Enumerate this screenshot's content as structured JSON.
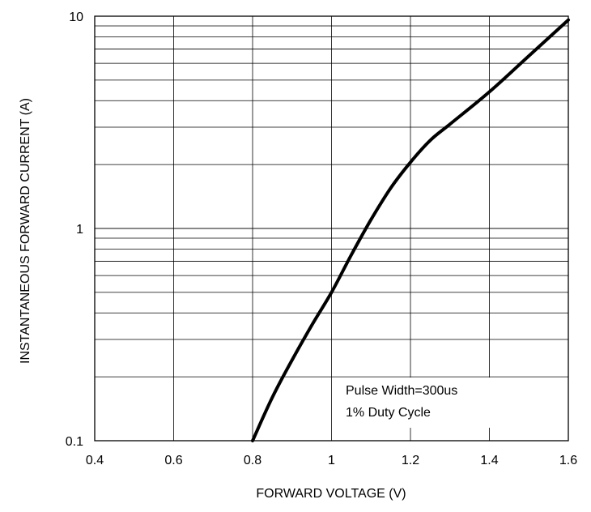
{
  "chart_data": {
    "type": "line",
    "xlabel": "FORWARD VOLTAGE (V)",
    "ylabel": "INSTANTANEOUS FORWARD CURRENT (A)",
    "xlim": [
      0.4,
      1.6
    ],
    "ylim": [
      0.1,
      10
    ],
    "y_scale": "log",
    "grid": true,
    "x_ticks": [
      0.4,
      0.6,
      0.8,
      1.0,
      1.2,
      1.4,
      1.6
    ],
    "x_tick_labels": [
      "0.4",
      "0.6",
      "0.8",
      "1",
      "1.2",
      "1.4",
      "1.6"
    ],
    "y_ticks": [
      0.1,
      1,
      10
    ],
    "y_tick_labels": [
      "0.1",
      "1",
      "10"
    ],
    "annotations": [
      "Pulse Width=300us",
      "1% Duty Cycle"
    ],
    "series": [
      {
        "x": [
          0.8,
          0.85,
          0.9,
          0.95,
          1.0,
          1.05,
          1.1,
          1.15,
          1.2,
          1.25,
          1.3,
          1.4,
          1.5,
          1.6
        ],
        "y": [
          0.1,
          0.16,
          0.24,
          0.35,
          0.5,
          0.75,
          1.1,
          1.55,
          2.05,
          2.6,
          3.1,
          4.4,
          6.5,
          9.6
        ]
      }
    ]
  }
}
